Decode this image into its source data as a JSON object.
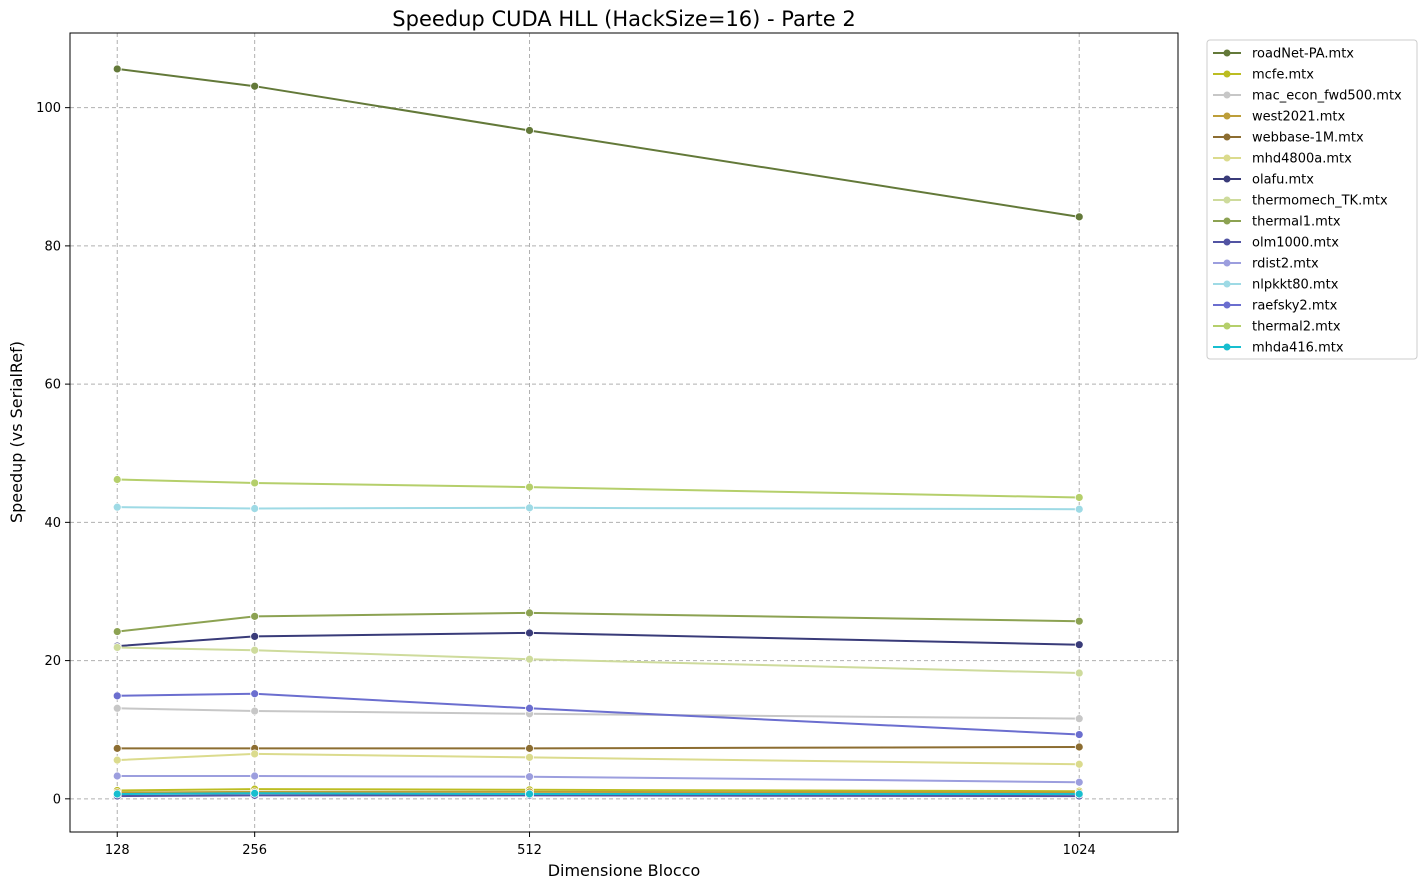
{
  "chart_data": {
    "type": "line",
    "title": "Speedup CUDA HLL (HackSize=16) - Parte 2",
    "xlabel": "Dimensione Blocco",
    "ylabel": "Speedup (vs SerialRef)",
    "x": [
      128,
      256,
      512,
      1024
    ],
    "x_tick_labels": [
      "128",
      "256",
      "512",
      "1024"
    ],
    "xlim": [
      84,
      1116
    ],
    "ylim": [
      -4.8,
      110.8
    ],
    "y_ticks": [
      0,
      20,
      40,
      60,
      80,
      100
    ],
    "y_tick_labels": [
      "0",
      "20",
      "40",
      "60",
      "80",
      "100"
    ],
    "grid": true,
    "grid_style": "dashed",
    "legend_position": "outside-top-right",
    "series": [
      {
        "name": "roadNet-PA.mtx",
        "color": "#637939",
        "values": [
          105.6,
          103.1,
          96.7,
          84.2
        ]
      },
      {
        "name": "mcfe.mtx",
        "color": "#bcbd22",
        "values": [
          1.2,
          1.4,
          1.3,
          1.1
        ]
      },
      {
        "name": "mac_econ_fwd500.mtx",
        "color": "#c7c7c7",
        "values": [
          13.1,
          12.7,
          12.3,
          11.6
        ]
      },
      {
        "name": "west2021.mtx",
        "color": "#bd9e39",
        "values": [
          0.9,
          1.0,
          1.0,
          0.9
        ]
      },
      {
        "name": "webbase-1M.mtx",
        "color": "#8c6d31",
        "values": [
          7.3,
          7.3,
          7.3,
          7.5
        ]
      },
      {
        "name": "mhd4800a.mtx",
        "color": "#dbdb8d",
        "values": [
          5.6,
          6.5,
          6.0,
          5.0
        ]
      },
      {
        "name": "olafu.mtx",
        "color": "#393b79",
        "values": [
          22.1,
          23.5,
          24.0,
          22.3
        ]
      },
      {
        "name": "thermomech_TK.mtx",
        "color": "#cedb9c",
        "values": [
          21.9,
          21.5,
          20.2,
          18.2
        ]
      },
      {
        "name": "thermal1.mtx",
        "color": "#8ca252",
        "values": [
          24.2,
          26.4,
          26.9,
          25.7
        ]
      },
      {
        "name": "olm1000.mtx",
        "color": "#5254a3",
        "values": [
          0.4,
          0.5,
          0.5,
          0.4
        ]
      },
      {
        "name": "rdist2.mtx",
        "color": "#9c9ede",
        "values": [
          3.3,
          3.3,
          3.2,
          2.4
        ]
      },
      {
        "name": "nlpkkt80.mtx",
        "color": "#9edae5",
        "values": [
          42.2,
          42.0,
          42.1,
          41.9
        ]
      },
      {
        "name": "raefsky2.mtx",
        "color": "#6b6ecf",
        "values": [
          14.9,
          15.2,
          13.1,
          9.3
        ]
      },
      {
        "name": "thermal2.mtx",
        "color": "#b5cf6b",
        "values": [
          46.2,
          45.7,
          45.1,
          43.6
        ]
      },
      {
        "name": "mhda416.mtx",
        "color": "#17becf",
        "values": [
          0.7,
          0.8,
          0.7,
          0.7
        ]
      }
    ]
  }
}
